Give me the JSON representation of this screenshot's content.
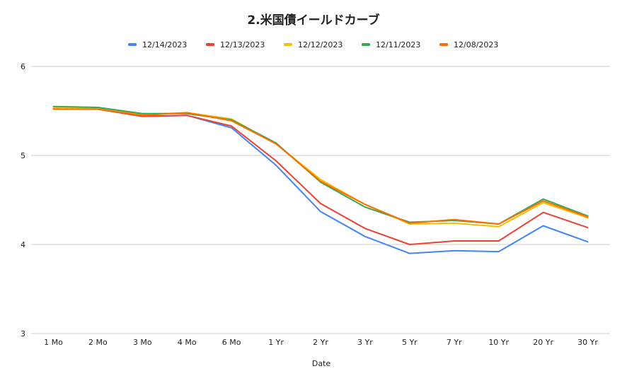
{
  "chart_data": {
    "type": "line",
    "title": "2.米国債イールドカーブ",
    "xlabel": "Date",
    "ylabel": "",
    "ylim": [
      3,
      6
    ],
    "yticks": [
      3,
      4,
      5,
      6
    ],
    "grid": true,
    "legend_position": "top",
    "categories": [
      "1 Mo",
      "2 Mo",
      "3 Mo",
      "4 Mo",
      "6 Mo",
      "1 Yr",
      "2 Yr",
      "3 Yr",
      "5 Yr",
      "7 Yr",
      "10 Yr",
      "20 Yr",
      "30 Yr"
    ],
    "series": [
      {
        "name": "12/14/2023",
        "color": "#4285F4",
        "values": [
          5.53,
          5.52,
          5.44,
          5.45,
          5.31,
          4.89,
          4.37,
          4.09,
          3.9,
          3.93,
          3.92,
          4.21,
          4.03
        ]
      },
      {
        "name": "12/13/2023",
        "color": "#EA4335",
        "values": [
          5.53,
          5.52,
          5.44,
          5.45,
          5.33,
          4.94,
          4.46,
          4.18,
          4.0,
          4.04,
          4.04,
          4.36,
          4.19
        ]
      },
      {
        "name": "12/12/2023",
        "color": "#FBBC04",
        "values": [
          5.53,
          5.53,
          5.46,
          5.48,
          5.41,
          5.13,
          4.73,
          4.45,
          4.23,
          4.24,
          4.2,
          4.47,
          4.3
        ]
      },
      {
        "name": "12/11/2023",
        "color": "#34A853",
        "values": [
          5.55,
          5.54,
          5.47,
          5.47,
          5.4,
          5.14,
          4.7,
          4.42,
          4.25,
          4.27,
          4.23,
          4.51,
          4.32
        ]
      },
      {
        "name": "12/08/2023",
        "color": "#FF6D01",
        "values": [
          5.52,
          5.52,
          5.45,
          5.48,
          5.39,
          5.13,
          4.71,
          4.45,
          4.24,
          4.28,
          4.23,
          4.49,
          4.31
        ]
      }
    ]
  }
}
